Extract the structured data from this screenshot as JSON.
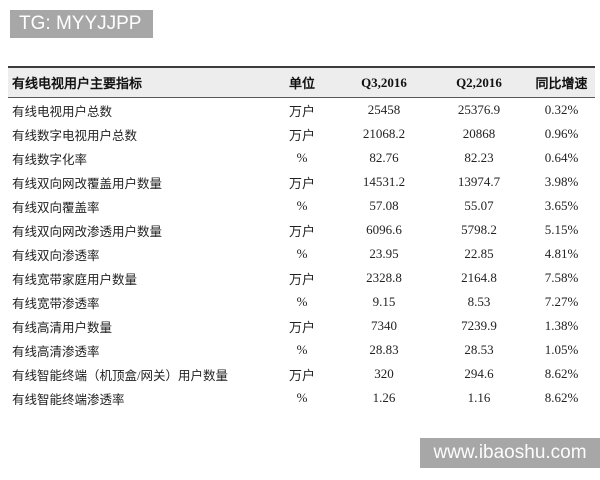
{
  "overlays": {
    "top_banner": "TG: MYYJJPP",
    "bottom_banner": "www.ibaoshu.com"
  },
  "colors": {
    "banner_bg": "#a7a7a7",
    "header_bg": "#ededed",
    "border_dark": "#3c3c3c",
    "text": "#222222"
  },
  "table": {
    "headers": [
      "有线电视用户主要指标",
      "单位",
      "Q3,2016",
      "Q2,2016",
      "同比增速"
    ],
    "rows": [
      {
        "label": "有线电视用户总数",
        "unit": "万户",
        "q3": "25458",
        "q2": "25376.9",
        "yoy": "0.32%"
      },
      {
        "label": "有线数字电视用户总数",
        "unit": "万户",
        "q3": "21068.2",
        "q2": "20868",
        "yoy": "0.96%"
      },
      {
        "label": "有线数字化率",
        "unit": "%",
        "q3": "82.76",
        "q2": "82.23",
        "yoy": "0.64%"
      },
      {
        "label": "有线双向网改覆盖用户数量",
        "unit": "万户",
        "q3": "14531.2",
        "q2": "13974.7",
        "yoy": "3.98%"
      },
      {
        "label": "有线双向覆盖率",
        "unit": "%",
        "q3": "57.08",
        "q2": "55.07",
        "yoy": "3.65%"
      },
      {
        "label": "有线双向网改渗透用户数量",
        "unit": "万户",
        "q3": "6096.6",
        "q2": "5798.2",
        "yoy": "5.15%"
      },
      {
        "label": "有线双向渗透率",
        "unit": "%",
        "q3": "23.95",
        "q2": "22.85",
        "yoy": "4.81%"
      },
      {
        "label": "有线宽带家庭用户数量",
        "unit": "万户",
        "q3": "2328.8",
        "q2": "2164.8",
        "yoy": "7.58%"
      },
      {
        "label": "有线宽带渗透率",
        "unit": "%",
        "q3": "9.15",
        "q2": "8.53",
        "yoy": "7.27%"
      },
      {
        "label": "有线高清用户数量",
        "unit": "万户",
        "q3": "7340",
        "q2": "7239.9",
        "yoy": "1.38%"
      },
      {
        "label": "有线高清渗透率",
        "unit": "%",
        "q3": "28.83",
        "q2": "28.53",
        "yoy": "1.05%"
      },
      {
        "label": "有线智能终端（机顶盒/网关）用户数量",
        "unit": "万户",
        "q3": "320",
        "q2": "294.6",
        "yoy": "8.62%"
      },
      {
        "label": "有线智能终端渗透率",
        "unit": "%",
        "q3": "1.26",
        "q2": "1.16",
        "yoy": "8.62%"
      }
    ]
  }
}
